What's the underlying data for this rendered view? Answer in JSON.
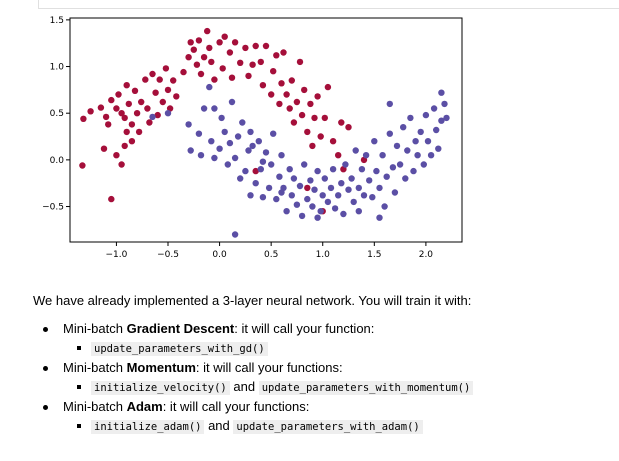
{
  "chart_data": {
    "type": "scatter",
    "xlim": [
      -1.45,
      2.35
    ],
    "ylim": [
      -0.88,
      1.52
    ],
    "xticks": [
      "-1.0",
      "-0.5",
      "0.0",
      "0.5",
      "1.0",
      "1.5",
      "2.0"
    ],
    "yticks": [
      "1.5",
      "1.0",
      "0.5",
      "0.0",
      "-0.5"
    ],
    "xtick_values": [
      -1.0,
      -0.5,
      0.0,
      0.5,
      1.0,
      1.5,
      2.0
    ],
    "ytick_values": [
      1.5,
      1.0,
      0.5,
      0.0,
      -0.5
    ],
    "grid": false,
    "series": [
      {
        "color": "#a50f3a",
        "points": [
          [
            -1.32,
            0.44
          ],
          [
            -1.33,
            -0.06
          ],
          [
            -1.25,
            0.52
          ],
          [
            -1.15,
            0.56
          ],
          [
            -1.1,
            0.46
          ],
          [
            -1.08,
            0.38
          ],
          [
            -1.12,
            0.12
          ],
          [
            -1.05,
            0.64
          ],
          [
            -1.0,
            0.55
          ],
          [
            -0.98,
            0.7
          ],
          [
            -0.95,
            0.5
          ],
          [
            -0.92,
            0.45
          ],
          [
            -0.9,
            0.8
          ],
          [
            -0.88,
            0.6
          ],
          [
            -0.85,
            0.38
          ],
          [
            -0.82,
            0.74
          ],
          [
            -0.8,
            0.5
          ],
          [
            -0.78,
            0.3
          ],
          [
            -0.76,
            0.62
          ],
          [
            -0.72,
            0.86
          ],
          [
            -0.7,
            0.55
          ],
          [
            -0.68,
            0.4
          ],
          [
            -0.65,
            0.92
          ],
          [
            -0.62,
            0.72
          ],
          [
            -0.6,
            0.48
          ],
          [
            -0.58,
            0.86
          ],
          [
            -0.55,
            0.62
          ],
          [
            -0.52,
            0.98
          ],
          [
            -0.5,
            0.75
          ],
          [
            -0.48,
            0.55
          ],
          [
            -0.45,
            0.85
          ],
          [
            -0.42,
            0.68
          ],
          [
            -0.35,
            0.94
          ],
          [
            -0.3,
            1.1
          ],
          [
            -0.28,
            1.26
          ],
          [
            -0.25,
            1.18
          ],
          [
            -0.22,
            1.02
          ],
          [
            -0.2,
            1.28
          ],
          [
            -0.18,
            0.92
          ],
          [
            -0.15,
            1.1
          ],
          [
            -0.12,
            1.38
          ],
          [
            -0.1,
            1.2
          ],
          [
            -0.08,
            1.05
          ],
          [
            -0.05,
            0.86
          ],
          [
            0.0,
            1.26
          ],
          [
            0.03,
            0.98
          ],
          [
            0.05,
            1.32
          ],
          [
            0.1,
            1.15
          ],
          [
            0.12,
            0.88
          ],
          [
            0.15,
            1.26
          ],
          [
            0.2,
            1.04
          ],
          [
            0.25,
            1.2
          ],
          [
            0.28,
            0.9
          ],
          [
            0.32,
            1.02
          ],
          [
            0.35,
            1.22
          ],
          [
            0.4,
            1.05
          ],
          [
            0.42,
            0.8
          ],
          [
            0.45,
            1.22
          ],
          [
            0.5,
            0.7
          ],
          [
            0.52,
            0.95
          ],
          [
            0.55,
            1.12
          ],
          [
            0.58,
            0.6
          ],
          [
            0.6,
            0.82
          ],
          [
            0.62,
            1.15
          ],
          [
            0.65,
            0.7
          ],
          [
            0.68,
            0.55
          ],
          [
            0.7,
            0.85
          ],
          [
            0.72,
            0.4
          ],
          [
            0.75,
            0.62
          ],
          [
            0.78,
            1.05
          ],
          [
            0.8,
            0.48
          ],
          [
            0.82,
            0.75
          ],
          [
            0.85,
            0.3
          ],
          [
            0.88,
            0.6
          ],
          [
            0.9,
            0.15
          ],
          [
            0.92,
            0.45
          ],
          [
            0.95,
            0.68
          ],
          [
            0.98,
            0.25
          ],
          [
            1.02,
            0.45
          ],
          [
            1.05,
            0.78
          ],
          [
            1.1,
            0.2
          ],
          [
            1.15,
            0.05
          ],
          [
            1.18,
            0.4
          ],
          [
            1.2,
            -0.1
          ],
          [
            1.25,
            0.35
          ],
          [
            1.4,
            0.0
          ],
          [
            0.85,
            -0.3
          ],
          [
            1.0,
            -0.55
          ],
          [
            0.35,
            -0.12
          ],
          [
            -1.05,
            -0.42
          ],
          [
            -0.92,
            0.15
          ],
          [
            -0.85,
            0.2
          ],
          [
            -1.0,
            0.05
          ],
          [
            -0.95,
            -0.05
          ],
          [
            -0.9,
            0.3
          ]
        ]
      },
      {
        "color": "#5b4fa5",
        "points": [
          [
            -0.65,
            0.46
          ],
          [
            -0.5,
            0.5
          ],
          [
            -0.3,
            0.38
          ],
          [
            -0.28,
            0.1
          ],
          [
            -0.2,
            0.28
          ],
          [
            -0.18,
            0.05
          ],
          [
            -0.15,
            0.55
          ],
          [
            -0.1,
            0.78
          ],
          [
            -0.08,
            0.2
          ],
          [
            -0.05,
            0.02
          ],
          [
            0.0,
            0.12
          ],
          [
            0.02,
            0.45
          ],
          [
            0.05,
            0.3
          ],
          [
            0.08,
            -0.05
          ],
          [
            0.1,
            0.18
          ],
          [
            0.12,
            0.62
          ],
          [
            0.15,
            0.02
          ],
          [
            0.18,
            0.25
          ],
          [
            0.2,
            -0.2
          ],
          [
            0.22,
            0.4
          ],
          [
            0.25,
            -0.12
          ],
          [
            0.28,
            0.1
          ],
          [
            0.3,
            -0.38
          ],
          [
            0.32,
            0.15
          ],
          [
            0.35,
            -0.25
          ],
          [
            0.38,
            0.2
          ],
          [
            0.4,
            -0.1
          ],
          [
            0.42,
            -0.4
          ],
          [
            0.45,
            0.08
          ],
          [
            0.48,
            -0.3
          ],
          [
            0.5,
            -0.05
          ],
          [
            0.52,
            0.28
          ],
          [
            0.55,
            -0.42
          ],
          [
            0.58,
            -0.18
          ],
          [
            0.6,
            0.05
          ],
          [
            0.62,
            -0.3
          ],
          [
            0.65,
            -0.55
          ],
          [
            0.68,
            -0.1
          ],
          [
            0.7,
            -0.38
          ],
          [
            0.72,
            -0.2
          ],
          [
            0.75,
            -0.48
          ],
          [
            0.78,
            -0.28
          ],
          [
            0.8,
            -0.6
          ],
          [
            0.82,
            -0.05
          ],
          [
            0.85,
            -0.42
          ],
          [
            0.88,
            -0.22
          ],
          [
            0.9,
            -0.5
          ],
          [
            0.92,
            -0.32
          ],
          [
            0.95,
            -0.12
          ],
          [
            0.98,
            -0.55
          ],
          [
            1.0,
            -0.38
          ],
          [
            1.02,
            -0.2
          ],
          [
            1.05,
            -0.45
          ],
          [
            1.08,
            -0.3
          ],
          [
            1.1,
            -0.1
          ],
          [
            1.12,
            -0.52
          ],
          [
            1.15,
            -0.38
          ],
          [
            1.18,
            -0.25
          ],
          [
            1.2,
            -0.58
          ],
          [
            1.22,
            -0.05
          ],
          [
            1.25,
            -0.32
          ],
          [
            1.28,
            -0.2
          ],
          [
            1.3,
            -0.45
          ],
          [
            1.32,
            0.1
          ],
          [
            1.35,
            -0.3
          ],
          [
            1.38,
            -0.1
          ],
          [
            1.4,
            -0.38
          ],
          [
            1.42,
            0.05
          ],
          [
            1.45,
            -0.22
          ],
          [
            1.48,
            -0.4
          ],
          [
            1.5,
            0.2
          ],
          [
            1.52,
            -0.12
          ],
          [
            1.55,
            -0.3
          ],
          [
            1.58,
            0.05
          ],
          [
            1.6,
            -0.5
          ],
          [
            1.62,
            -0.18
          ],
          [
            1.65,
            0.28
          ],
          [
            1.68,
            -0.08
          ],
          [
            1.7,
            -0.35
          ],
          [
            1.72,
            0.15
          ],
          [
            1.75,
            -0.05
          ],
          [
            1.78,
            0.35
          ],
          [
            1.8,
            -0.2
          ],
          [
            1.82,
            0.1
          ],
          [
            1.85,
            0.45
          ],
          [
            1.88,
            -0.12
          ],
          [
            1.9,
            0.2
          ],
          [
            1.92,
            0.05
          ],
          [
            1.95,
            0.3
          ],
          [
            1.98,
            -0.05
          ],
          [
            2.0,
            0.48
          ],
          [
            2.02,
            0.2
          ],
          [
            2.05,
            0.05
          ],
          [
            2.08,
            0.55
          ],
          [
            2.1,
            0.32
          ],
          [
            2.12,
            0.12
          ],
          [
            2.15,
            0.42
          ],
          [
            2.18,
            0.6
          ],
          [
            2.2,
            0.45
          ],
          [
            2.15,
            0.72
          ],
          [
            1.65,
            0.6
          ],
          [
            1.55,
            -0.62
          ],
          [
            0.15,
            -0.8
          ],
          [
            -0.05,
            0.55
          ],
          [
            1.35,
            -0.55
          ],
          [
            0.6,
            -0.35
          ],
          [
            0.95,
            -0.62
          ],
          [
            0.42,
            -0.02
          ],
          [
            0.3,
            0.3
          ]
        ]
      }
    ]
  },
  "intro_text": "We have already implemented a 3-layer neural network. You will train it with:",
  "items": [
    {
      "prefix": "Mini-batch ",
      "bold": "Gradient Descent",
      "suffix": ": it will call your function:",
      "code1": "update_parameters_with_gd()",
      "and": "",
      "code2": ""
    },
    {
      "prefix": "Mini-batch ",
      "bold": "Momentum",
      "suffix": ": it will call your functions:",
      "code1": "initialize_velocity()",
      "and": " and ",
      "code2": "update_parameters_with_momentum()"
    },
    {
      "prefix": "Mini-batch ",
      "bold": "Adam",
      "suffix": ": it will call your functions:",
      "code1": "initialize_adam()",
      "and": " and ",
      "code2": "update_parameters_with_adam()"
    }
  ]
}
